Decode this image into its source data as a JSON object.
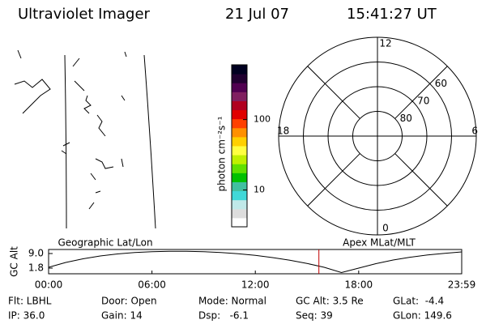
{
  "header": {
    "title": "Ultraviolet Imager",
    "date": "21 Jul 07",
    "time": "15:41:27 UT"
  },
  "panels": {
    "left": "Geographic Lat/Lon",
    "right": "Apex MLat/MLT"
  },
  "colorbar": {
    "label": "photon cm⁻²s⁻¹",
    "scale": "log",
    "lim": [
      3,
      600
    ],
    "ticks": [
      10,
      100
    ],
    "colors": [
      "#ffffff",
      "#dddddd",
      "#c0e8e8",
      "#40d8d8",
      "#40c0a0",
      "#00c000",
      "#60e000",
      "#c0f000",
      "#ffff40",
      "#ffd000",
      "#ff9000",
      "#ff4000",
      "#e00000",
      "#b00020",
      "#802060",
      "#500050",
      "#200030",
      "#000020"
    ]
  },
  "polar": {
    "rlim": [
      90,
      50
    ],
    "rings": [
      60,
      70,
      80
    ],
    "mlt_ticks": [
      12,
      18,
      6,
      0
    ]
  },
  "chart_data": {
    "type": "line",
    "ylabel": "GC Alt",
    "color": "#000000",
    "x": [
      0,
      1,
      2,
      3,
      4,
      5,
      6,
      7,
      8,
      9,
      10,
      11,
      12,
      13,
      14,
      15,
      16,
      17,
      18,
      19,
      20,
      21,
      22,
      23,
      23.98
    ],
    "values": [
      2.2,
      4.6,
      6.4,
      7.8,
      8.8,
      9.5,
      9.9,
      10.1,
      10.1,
      9.9,
      9.5,
      8.9,
      8.1,
      7.0,
      5.7,
      4.1,
      2.2,
      -0.4,
      1.8,
      4.0,
      5.8,
      7.2,
      8.3,
      9.1,
      9.8
    ],
    "xlim": [
      0,
      23.98
    ],
    "ylim": [
      -1,
      11
    ],
    "xticks": [
      {
        "value": 0,
        "label": "00:00"
      },
      {
        "value": 6,
        "label": "06:00"
      },
      {
        "value": 12,
        "label": "12:00"
      },
      {
        "value": 18,
        "label": "18:00"
      },
      {
        "value": 23.98,
        "label": "23:59"
      }
    ],
    "yticks": [
      {
        "value": 9,
        "label": "9.0"
      },
      {
        "value": 1.8,
        "label": "1.8"
      }
    ],
    "marker": {
      "x": 15.69,
      "color": "#c00000"
    }
  },
  "info": [
    [
      "Flt: LBHL",
      "Door: Open",
      "Mode: Normal",
      "GC Alt: 3.5 Re",
      "GLat:  -4.4"
    ],
    [
      "IP: 36.0",
      "Gain: 14",
      "Dsp:   -6.1",
      "Seq: 39",
      "GLon: 149.6"
    ]
  ]
}
